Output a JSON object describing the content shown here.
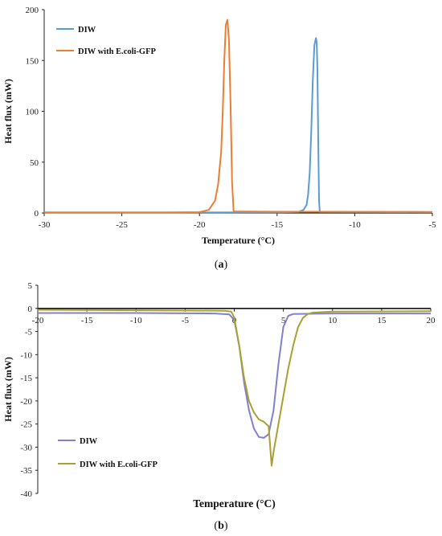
{
  "chart_data": [
    {
      "type": "line",
      "panel": "a",
      "caption": {
        "open": "(",
        "letter": "a",
        "close": ")"
      },
      "xlabel": "Temperature (°C)",
      "ylabel": "Heat flux (mW)",
      "xlim": [
        -30,
        -5
      ],
      "ylim": [
        0,
        200
      ],
      "xticks": [
        -30,
        -25,
        -20,
        -15,
        -10,
        -5
      ],
      "yticks": [
        0,
        50,
        100,
        150,
        200
      ],
      "grid": false,
      "legend_position": "top-left",
      "series": [
        {
          "name": "DIW",
          "color": "#5b9bd5",
          "x": [
            -30,
            -20,
            -15,
            -13.6,
            -13.3,
            -13.1,
            -13.0,
            -12.9,
            -12.8,
            -12.7,
            -12.6,
            -12.5,
            -12.45,
            -12.4,
            -12.35,
            -12.3,
            -12.25,
            -5
          ],
          "y": [
            0.5,
            0.5,
            0.6,
            1,
            3,
            8,
            18,
            40,
            80,
            130,
            165,
            172,
            168,
            140,
            70,
            12,
            1,
            0.8
          ]
        },
        {
          "name": "DIW with E.coli-GFP",
          "color": "#ed7d31",
          "x": [
            -30,
            -22,
            -20,
            -19.4,
            -19.0,
            -18.8,
            -18.6,
            -18.5,
            -18.4,
            -18.3,
            -18.2,
            -18.1,
            -18.0,
            -17.9,
            -17.8,
            -15,
            -5
          ],
          "y": [
            0.5,
            0.5,
            0.8,
            3,
            12,
            28,
            60,
            100,
            150,
            185,
            190,
            170,
            110,
            30,
            1.5,
            1.2,
            1.0
          ]
        }
      ]
    },
    {
      "type": "line",
      "panel": "b",
      "caption": {
        "open": "(",
        "letter": "b",
        "close": ")"
      },
      "xlabel": "Temperature (°C)",
      "ylabel": "Heat flux (mW)",
      "xlim": [
        -20,
        20
      ],
      "ylim": [
        -40,
        5
      ],
      "xticks": [
        -20,
        -15,
        -10,
        -5,
        0,
        5,
        10,
        15,
        20
      ],
      "yticks": [
        5,
        0,
        -5,
        -10,
        -15,
        -20,
        -25,
        -30,
        -35,
        -40
      ],
      "grid": false,
      "legend_position": "bottom-left",
      "series": [
        {
          "name": "DIW",
          "color": "#8080d0",
          "x": [
            -20,
            -10,
            -2,
            -0.5,
            0,
            0.5,
            1,
            1.5,
            2,
            2.5,
            3,
            3.5,
            4,
            4.5,
            5,
            5.5,
            6,
            10,
            20
          ],
          "y": [
            -1.0,
            -1.0,
            -1.1,
            -1.3,
            -2.5,
            -8,
            -16,
            -22,
            -26,
            -27.8,
            -28,
            -27.2,
            -22,
            -12,
            -4,
            -1.6,
            -1.2,
            -1.1,
            -1.1
          ]
        },
        {
          "name": "DIW with E.coli-GFP",
          "color": "#a8a030",
          "x": [
            -20,
            -10,
            -1,
            -0.3,
            0,
            0.5,
            1,
            1.5,
            2,
            2.5,
            3,
            3.5,
            3.8,
            4,
            4.5,
            5,
            5.5,
            6,
            6.5,
            7,
            7.5,
            8,
            10,
            20
          ],
          "y": [
            -0.3,
            -0.4,
            -0.5,
            -0.7,
            -2,
            -8,
            -15,
            -20,
            -22.5,
            -24,
            -24.5,
            -25.5,
            -34,
            -31,
            -25,
            -19,
            -13,
            -8,
            -4,
            -2,
            -1.2,
            -0.9,
            -0.7,
            -0.6
          ]
        }
      ]
    }
  ]
}
